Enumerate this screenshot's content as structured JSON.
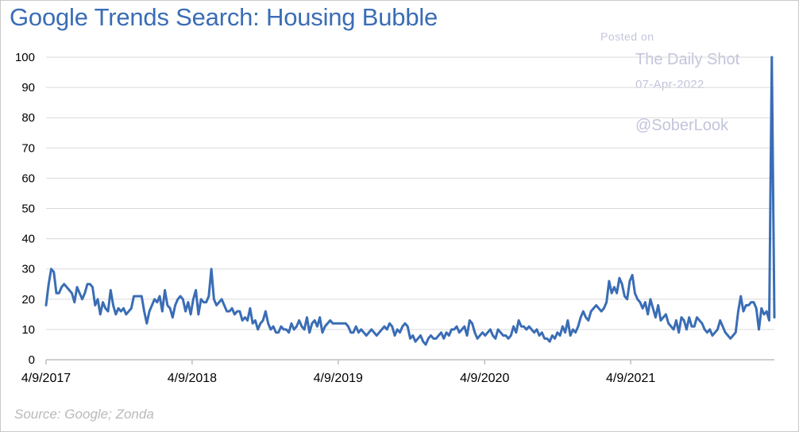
{
  "chart_data": {
    "type": "line",
    "title": "Google Trends Search: Housing Bubble",
    "source": "Source: Google; Zonda",
    "watermark": {
      "posted": "Posted on",
      "site": "The Daily Shot",
      "date": "07-Apr-2022",
      "handle": "@SoberLook"
    },
    "x_start": "2017-04-09",
    "x_end": "2022-04-03",
    "x_tick_labels": [
      "4/9/2017",
      "4/9/2018",
      "4/9/2019",
      "4/9/2020",
      "4/9/2021"
    ],
    "y_tick_labels": [
      "0",
      "10",
      "20",
      "30",
      "40",
      "50",
      "60",
      "70",
      "80",
      "90",
      "100"
    ],
    "ylim": [
      0,
      100
    ],
    "grid": "horizontal",
    "legend": "none",
    "colors": {
      "line": "#3a6db5",
      "title": "#3a6db5",
      "grid": "#d9d9d9",
      "watermark": "#c2c4dc"
    },
    "series": [
      {
        "values": [
          18,
          25,
          30,
          29,
          22,
          22,
          24,
          25,
          24,
          23,
          22,
          19,
          24,
          22,
          20,
          22,
          25,
          25,
          24,
          18,
          20,
          15,
          19,
          17,
          16,
          23,
          18,
          15,
          17,
          16,
          17,
          15,
          16,
          17,
          21,
          21,
          21,
          21,
          16,
          12,
          16,
          18,
          20,
          19,
          21,
          16,
          23,
          18,
          17,
          14,
          18,
          20,
          21,
          20,
          16,
          19,
          15,
          20,
          23,
          15,
          20,
          19,
          19,
          21,
          30,
          20,
          18,
          19,
          20,
          18,
          16,
          16,
          17,
          15,
          16,
          16,
          13,
          14,
          13,
          17,
          12,
          13,
          10,
          12,
          13,
          16,
          12,
          10,
          11,
          9,
          9,
          11,
          10,
          10,
          9,
          12,
          10,
          11,
          13,
          11,
          10,
          14,
          9,
          12,
          13,
          11,
          14,
          9,
          11,
          12,
          13,
          12,
          12,
          12,
          12,
          12,
          12,
          11,
          9,
          9,
          11,
          9,
          10,
          9,
          8,
          9,
          10,
          9,
          8,
          9,
          10,
          11,
          10,
          12,
          11,
          8,
          10,
          9,
          11,
          12,
          11,
          7,
          8,
          6,
          7,
          8,
          6,
          5,
          7,
          8,
          7,
          7,
          8,
          9,
          7,
          9,
          8,
          10,
          10,
          11,
          9,
          10,
          11,
          8,
          13,
          12,
          9,
          7,
          8,
          9,
          8,
          9,
          10,
          8,
          7,
          10,
          9,
          8,
          8,
          7,
          8,
          11,
          9,
          13,
          11,
          11,
          10,
          11,
          10,
          9,
          10,
          8,
          9,
          7,
          7,
          6,
          8,
          7,
          9,
          8,
          11,
          9,
          13,
          8,
          10,
          9,
          11,
          14,
          16,
          14,
          13,
          16,
          17,
          18,
          17,
          16,
          17,
          19,
          26,
          22,
          24,
          22,
          27,
          25,
          21,
          20,
          26,
          28,
          22,
          20,
          19,
          17,
          19,
          15,
          20,
          17,
          14,
          18,
          13,
          14,
          15,
          12,
          11,
          10,
          13,
          9,
          14,
          13,
          10,
          14,
          11,
          11,
          14,
          13,
          12,
          10,
          9,
          10,
          8,
          9,
          10,
          13,
          11,
          9,
          8,
          7,
          8,
          9,
          16,
          21,
          16,
          18,
          18,
          19,
          19,
          17,
          10,
          17,
          15,
          16,
          13,
          100,
          14
        ]
      }
    ]
  }
}
